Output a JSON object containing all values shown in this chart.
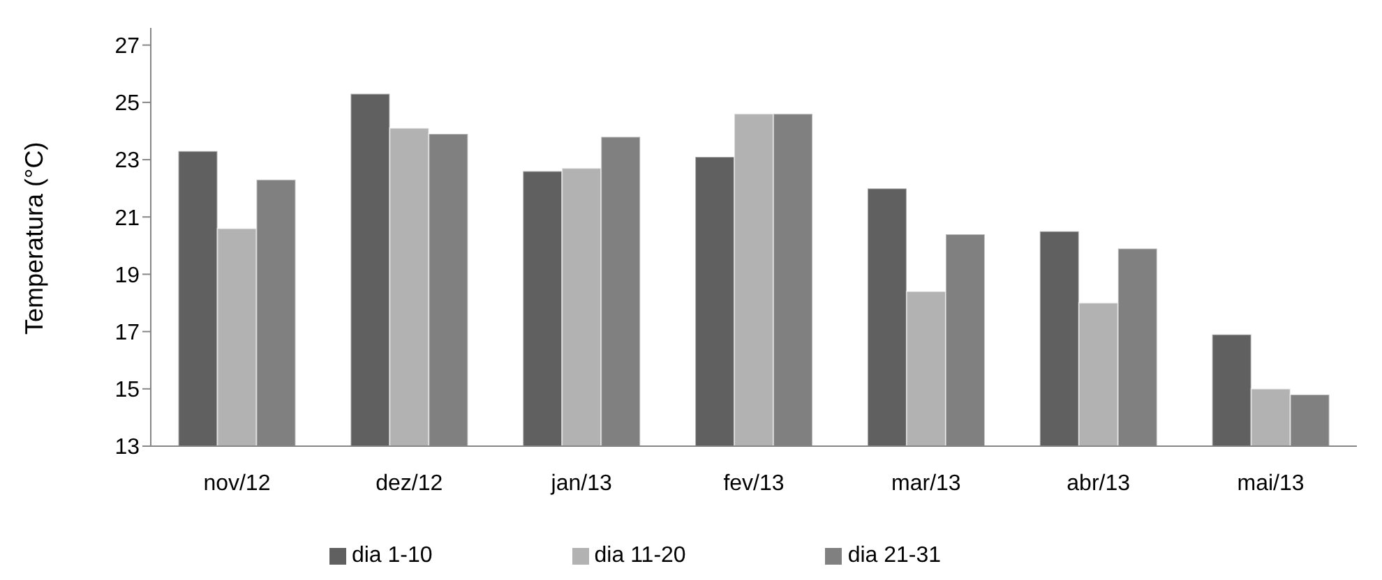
{
  "chart_data": {
    "type": "bar",
    "ylabel": "Temperatura (°C)",
    "categories": [
      "nov/12",
      "dez/12",
      "jan/13",
      "fev/13",
      "mar/13",
      "abr/13",
      "mai/13"
    ],
    "series": [
      {
        "name": "dia 1-10",
        "color": "#606060",
        "values": [
          23.3,
          25.3,
          22.6,
          23.1,
          22.0,
          20.5,
          16.9
        ]
      },
      {
        "name": "dia 11-20",
        "color": "#b2b2b2",
        "values": [
          20.6,
          24.1,
          22.7,
          24.6,
          18.4,
          18.0,
          15.0
        ]
      },
      {
        "name": "dia 21-31",
        "color": "#808080",
        "values": [
          22.3,
          23.9,
          23.8,
          24.6,
          20.4,
          19.9,
          14.8
        ]
      }
    ],
    "ylim": [
      13,
      27.6
    ],
    "yticks": [
      13,
      15,
      17,
      19,
      21,
      23,
      25,
      27
    ],
    "grid": false,
    "legend": "bottom"
  }
}
